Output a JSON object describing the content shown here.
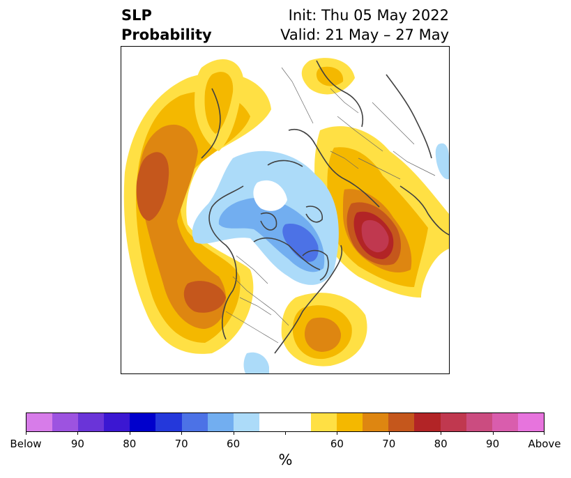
{
  "title": {
    "left_line1": "SLP",
    "left_line2": "Probability",
    "right_line1": "Init: Thu 05 May 2022",
    "right_line2": "Valid: 21 May – 27 May"
  },
  "colorbar": {
    "colors": [
      "#d77ce9",
      "#9d53e0",
      "#6a34d8",
      "#3b17d2",
      "#0000cc",
      "#2438db",
      "#4c72e6",
      "#72aef0",
      "#acdbf9",
      "#ffffff",
      "#ffffff",
      "#ffe044",
      "#f4b800",
      "#de8611",
      "#c5571c",
      "#b22426",
      "#c0384f",
      "#cb4c80",
      "#d95dad",
      "#e774dd"
    ],
    "tick_labels": [
      "Below",
      "90",
      "80",
      "70",
      "60",
      "",
      "60",
      "70",
      "80",
      "90",
      "Above"
    ],
    "units": "%"
  },
  "map": {
    "projection": "north-polar-stereographic",
    "variable": "sea-level-pressure-probability",
    "palette": {
      "blue_light": "#acdbf9",
      "blue_mid": "#72aef0",
      "blue_dark": "#4c72e6",
      "yellow": "#ffe044",
      "gold": "#f4b800",
      "orange": "#de8611",
      "rust": "#c5571c",
      "red": "#b22426",
      "crimson": "#c0384f",
      "coast": "#404040",
      "border": "#666666"
    }
  }
}
